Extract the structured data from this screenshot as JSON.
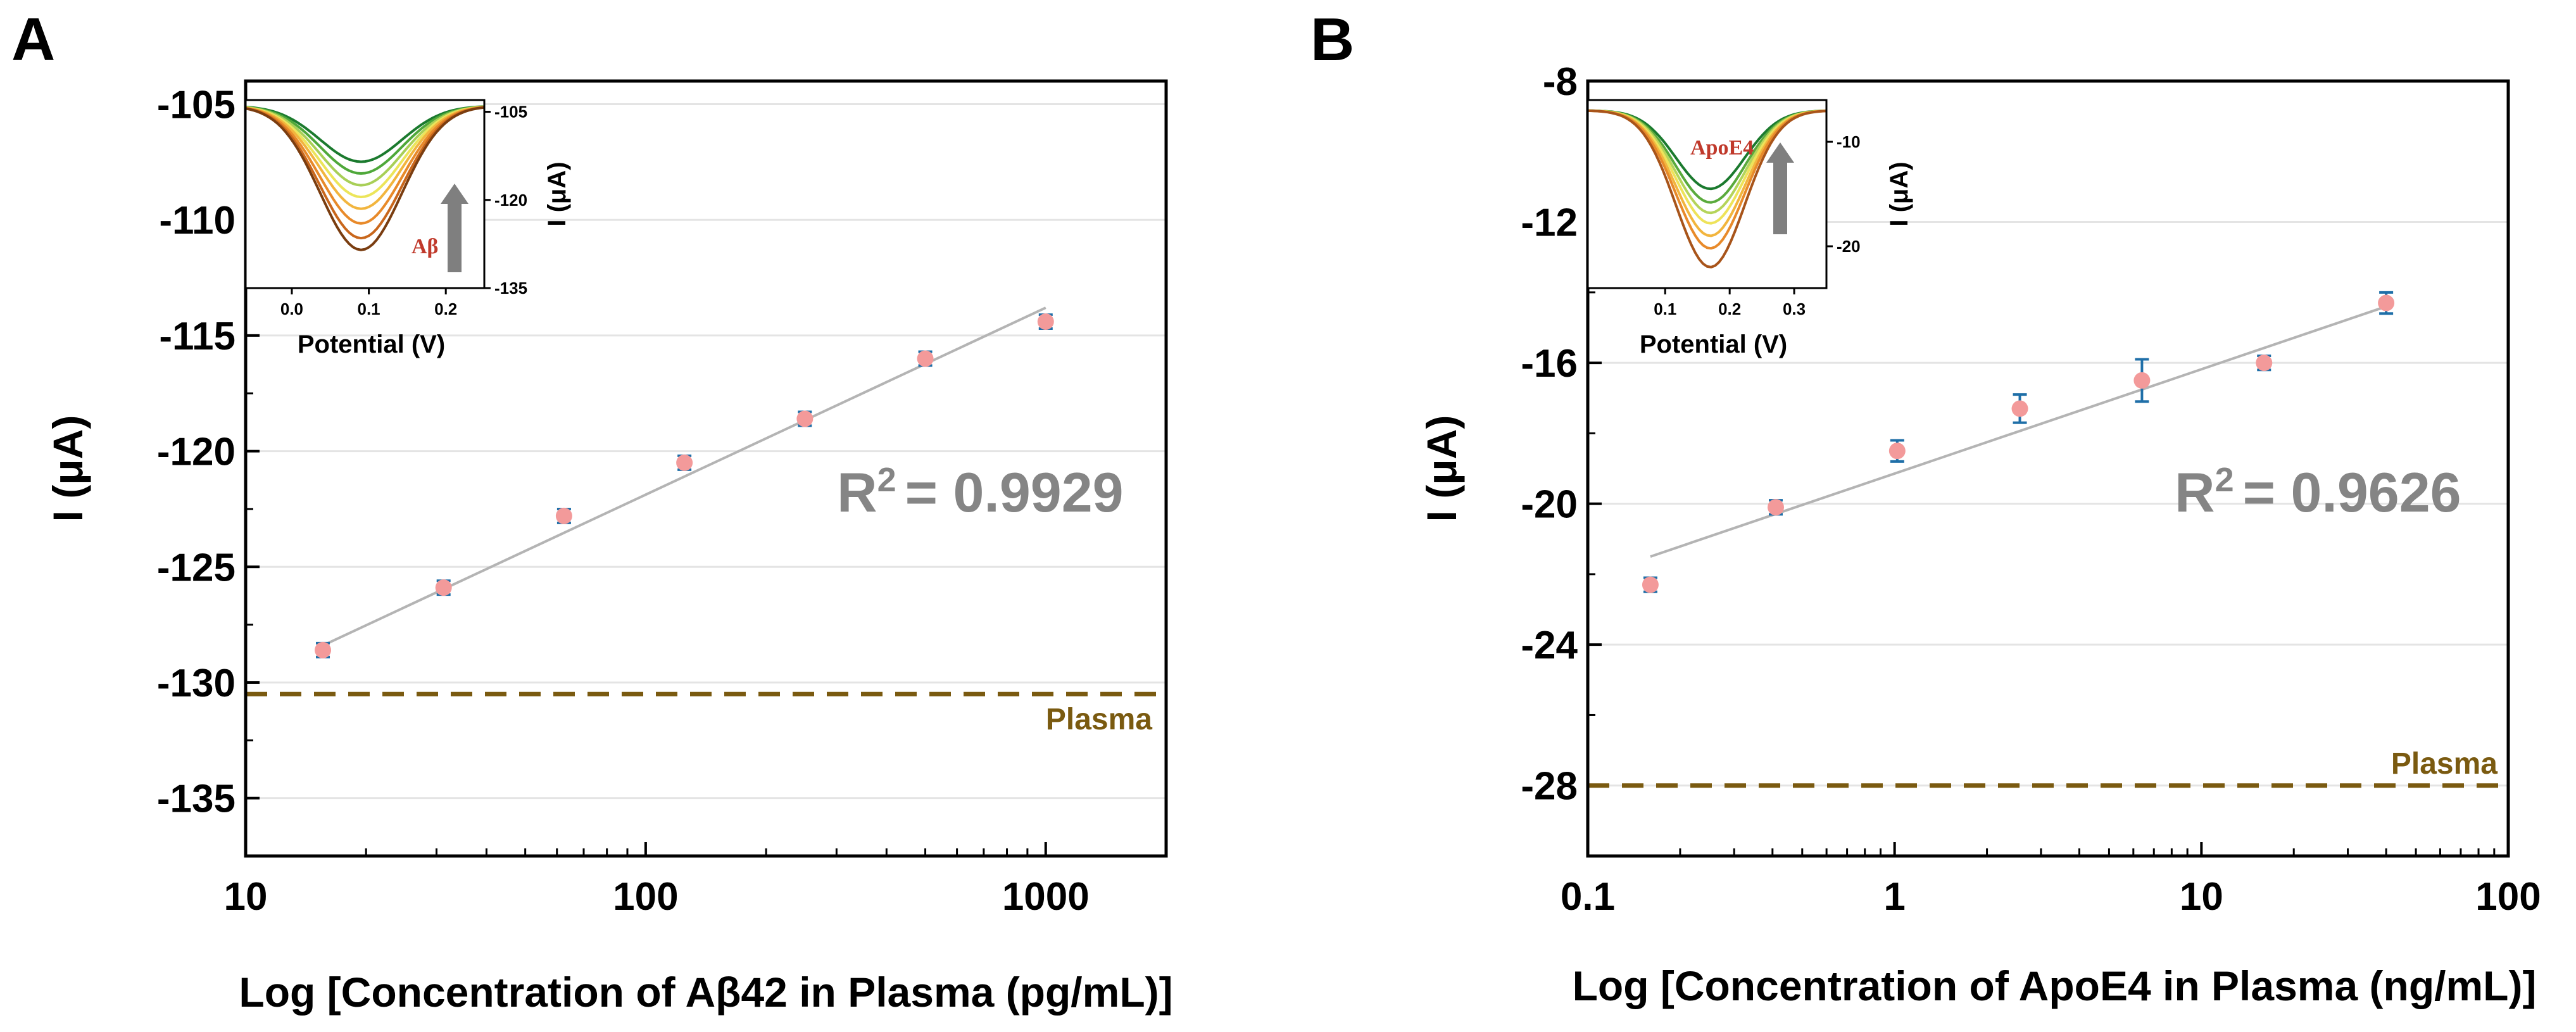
{
  "chart_data": [
    {
      "panel": "A",
      "type": "scatter",
      "xscale": "log",
      "xlim": [
        10,
        2000
      ],
      "ylim": [
        -137.5,
        -104
      ],
      "xticks": [
        10,
        100,
        1000
      ],
      "xtick_labels": [
        "10",
        "100",
        "1000"
      ],
      "yticks": [
        -105,
        -110,
        -115,
        -120,
        -125,
        -130,
        -135
      ],
      "ytick_labels": [
        "-105",
        "-110",
        "-115",
        "-120",
        "-125",
        "-130",
        "-135"
      ],
      "xlabel": "Log [Concentration of Aβ42 in Plasma (pg/mL)]",
      "ylabel": "I (μA)",
      "x": [
        15.6,
        31.25,
        62.5,
        125,
        250,
        500,
        1000
      ],
      "y": [
        -128.6,
        -125.9,
        -122.8,
        -120.5,
        -118.6,
        -116.0,
        -114.4
      ],
      "y_err": [
        0.3,
        0.3,
        0.3,
        0.3,
        0.3,
        0.3,
        0.3
      ],
      "fit": {
        "x": [
          15.6,
          1000
        ],
        "y": [
          -128.4,
          -113.8
        ]
      },
      "r2_prefix": "R",
      "r2_sup": "2",
      "r2_value": "= 0.9929",
      "baseline": {
        "value": -130.5,
        "label": "Plasma"
      },
      "inset": {
        "xlabel": "Potential (V)",
        "ylabel": "I (μA)",
        "xlim": [
          -0.06,
          0.25
        ],
        "ylim": [
          -135,
          -103
        ],
        "xticks": [
          0.0,
          0.1,
          0.2
        ],
        "xtick_labels": [
          "0.0",
          "0.1",
          "0.2"
        ],
        "yticks": [
          -105,
          -120,
          -135
        ],
        "ytick_labels": [
          "-105",
          "-120",
          "-135"
        ],
        "arrow_label": "Aβ",
        "peak_x": 0.09,
        "base": -104.0,
        "peaks": [
          -113.5,
          -115.5,
          -117.5,
          -119.5,
          -121.5,
          -124.0,
          -126.5,
          -128.5
        ],
        "colors": [
          "#1b7a2e",
          "#4fa83a",
          "#a8cf57",
          "#ece55a",
          "#f2b53e",
          "#e88a2a",
          "#c9671c",
          "#7a3d10"
        ]
      }
    },
    {
      "panel": "B",
      "type": "scatter",
      "xscale": "log",
      "xlim": [
        0.1,
        100
      ],
      "ylim": [
        -30,
        -8
      ],
      "xticks": [
        0.1,
        1,
        10,
        100
      ],
      "xtick_labels": [
        "0.1",
        "1",
        "10",
        "100"
      ],
      "yticks": [
        -8,
        -12,
        -16,
        -20,
        -24,
        -28
      ],
      "ytick_labels": [
        "-8",
        "-12",
        "-16",
        "-20",
        "-24",
        "-28"
      ],
      "xlabel": "Log [Concentration of ApoE4 in Plasma (ng/mL)]",
      "ylabel": "I (μA)",
      "x": [
        0.16,
        0.41,
        1.02,
        2.56,
        6.4,
        16,
        40
      ],
      "y": [
        -22.3,
        -20.1,
        -18.5,
        -17.3,
        -16.5,
        -16.0,
        -14.3
      ],
      "y_err": [
        0.2,
        0.2,
        0.3,
        0.4,
        0.6,
        0.2,
        0.3
      ],
      "fit": {
        "x": [
          0.16,
          40
        ],
        "y": [
          -21.5,
          -14.4
        ]
      },
      "r2_prefix": "R",
      "r2_sup": "2",
      "r2_value": "= 0.9626",
      "baseline": {
        "value": -28.0,
        "label": "Plasma"
      },
      "inset": {
        "xlabel": "Potential (V)",
        "ylabel": "I (μA)",
        "xlim": [
          -0.02,
          0.35
        ],
        "ylim": [
          -24,
          -6
        ],
        "xticks": [
          0.1,
          0.2,
          0.3
        ],
        "xtick_labels": [
          "0.1",
          "0.2",
          "0.3"
        ],
        "yticks": [
          -10,
          -20
        ],
        "ytick_labels": [
          "-10",
          "-20"
        ],
        "arrow_label": "ApoE4",
        "peak_x": 0.17,
        "base": -7.0,
        "peaks": [
          -14.5,
          -15.8,
          -16.8,
          -17.8,
          -19.0,
          -20.2,
          -22.0
        ],
        "colors": [
          "#1b7a2e",
          "#5aaa3c",
          "#b5d45a",
          "#eee35a",
          "#f2b53e",
          "#e88a2a",
          "#a8541a"
        ]
      }
    }
  ]
}
